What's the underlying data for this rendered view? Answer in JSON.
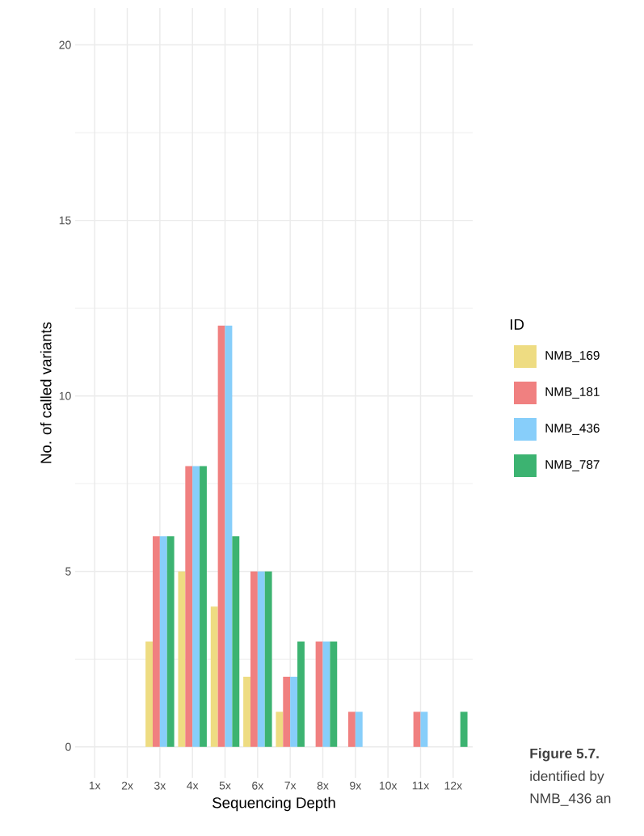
{
  "chart_data": {
    "type": "bar",
    "xlabel": "Sequencing Depth",
    "ylabel": "No. of called variants",
    "legend_title": "ID",
    "categories": [
      "1x",
      "2x",
      "3x",
      "4x",
      "5x",
      "6x",
      "7x",
      "8x",
      "9x",
      "10x",
      "11x",
      "12x"
    ],
    "series": [
      {
        "name": "NMB_169",
        "color": "#eedc82",
        "values": [
          null,
          null,
          3,
          5,
          4,
          2,
          1,
          0,
          0,
          null,
          0,
          0
        ]
      },
      {
        "name": "NMB_181",
        "color": "#f08080",
        "values": [
          null,
          null,
          6,
          8,
          12,
          5,
          2,
          3,
          1,
          null,
          1,
          0
        ]
      },
      {
        "name": "NMB_436",
        "color": "#87cefa",
        "values": [
          null,
          null,
          6,
          8,
          12,
          5,
          2,
          3,
          1,
          null,
          1,
          0
        ]
      },
      {
        "name": "NMB_787",
        "color": "#3cb371",
        "values": [
          null,
          null,
          6,
          8,
          6,
          5,
          3,
          3,
          0,
          null,
          0,
          1
        ]
      }
    ],
    "ylim": [
      -0.88,
      21.05
    ],
    "yticks": [
      0,
      5,
      10,
      15,
      20
    ],
    "grid": true,
    "legend": "right",
    "annotations": [
      "**Figure 5.7.**",
      "identified by",
      "NMB_436 an"
    ]
  }
}
